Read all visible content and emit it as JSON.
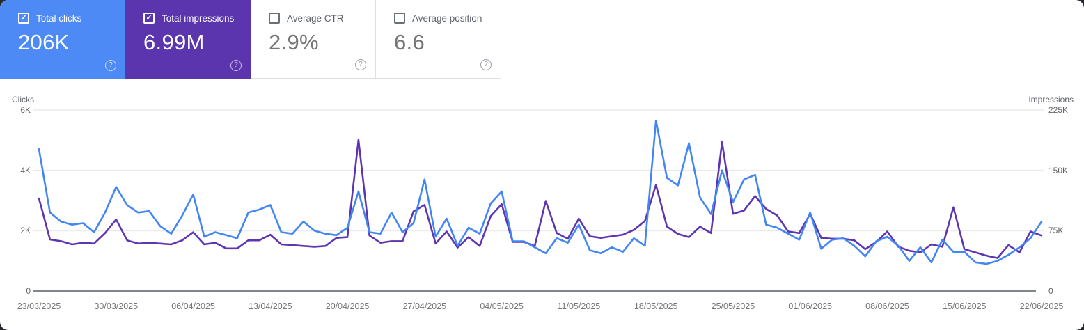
{
  "cards": [
    {
      "id": "total-clicks",
      "label": "Total clicks",
      "value": "206K",
      "checked": true,
      "accent": "#4d8af5"
    },
    {
      "id": "total-impressions",
      "label": "Total impressions",
      "value": "6.99M",
      "checked": true,
      "accent": "#5b35ad"
    },
    {
      "id": "average-ctr",
      "label": "Average CTR",
      "value": "2.9%",
      "checked": false,
      "accent": ""
    },
    {
      "id": "average-position",
      "label": "Average position",
      "value": "6.6",
      "checked": false,
      "accent": ""
    }
  ],
  "colors": {
    "clicks_line": "#4285f4",
    "impressions_line": "#5e35b1",
    "gridline": "#ebebeb",
    "axis_line": "#80868b",
    "tick_text": "#5f6368",
    "date_text": "#757575"
  },
  "chart_data": {
    "type": "line",
    "grid": true,
    "legend_position": "none",
    "num_points": 92,
    "left_axis": {
      "title": "Clicks",
      "range": [
        0,
        6000
      ],
      "tick_labels": [
        "0",
        "2K",
        "4K",
        "6K"
      ]
    },
    "right_axis": {
      "title": "Impressions",
      "range": [
        0,
        225000
      ],
      "tick_labels": [
        "0",
        "75K",
        "150K",
        "225K"
      ]
    },
    "x_tick_labels": [
      "23/03/2025",
      "30/03/2025",
      "06/04/2025",
      "13/04/2025",
      "20/04/2025",
      "27/04/2025",
      "04/05/2025",
      "11/05/2025",
      "18/05/2025",
      "25/05/2025",
      "01/06/2025",
      "08/06/2025",
      "15/06/2025",
      "22/06/2025"
    ],
    "series": [
      {
        "name": "Total clicks",
        "axis": "left",
        "color": "#4285f4",
        "values": [
          4700,
          2600,
          2300,
          2200,
          2250,
          1950,
          2600,
          3450,
          2850,
          2600,
          2650,
          2150,
          1900,
          2500,
          3200,
          1800,
          1950,
          1850,
          1750,
          2600,
          2700,
          2850,
          1950,
          1900,
          2300,
          2000,
          1900,
          1850,
          2100,
          3300,
          1950,
          1900,
          2600,
          1950,
          2250,
          3700,
          1800,
          2400,
          1500,
          2100,
          1900,
          2900,
          3300,
          1650,
          1650,
          1450,
          1250,
          1750,
          1600,
          2200,
          1350,
          1250,
          1450,
          1300,
          1750,
          1500,
          5650,
          3750,
          3500,
          4900,
          3100,
          2550,
          4000,
          2950,
          3700,
          3850,
          2200,
          2100,
          1900,
          1700,
          2600,
          1400,
          1700,
          1750,
          1500,
          1150,
          1650,
          1800,
          1500,
          1000,
          1450,
          950,
          1700,
          1300,
          1300,
          950,
          900,
          1000,
          1200,
          1450,
          1750,
          2300
        ]
      },
      {
        "name": "Total impressions",
        "axis": "right",
        "color": "#5e35b1",
        "values": [
          115000,
          64000,
          62000,
          58000,
          60000,
          59000,
          72000,
          89000,
          63000,
          59000,
          60000,
          59000,
          58000,
          63000,
          73000,
          58000,
          60000,
          53000,
          53000,
          63000,
          63000,
          70000,
          58000,
          57000,
          56000,
          55000,
          56000,
          66000,
          67000,
          188000,
          69000,
          60000,
          62000,
          62000,
          99000,
          107000,
          59000,
          74000,
          54000,
          67000,
          56000,
          93000,
          108000,
          61000,
          61000,
          56000,
          112000,
          72000,
          65000,
          90000,
          68000,
          66000,
          68000,
          70000,
          76000,
          87000,
          132000,
          80000,
          71000,
          67000,
          80000,
          72000,
          185000,
          96000,
          100000,
          118000,
          102000,
          94000,
          74000,
          72000,
          96000,
          66000,
          65000,
          65000,
          63000,
          52000,
          61000,
          74000,
          55000,
          50000,
          48000,
          58000,
          55000,
          104000,
          52000,
          48000,
          44000,
          41000,
          57000,
          48000,
          74000,
          69000
        ]
      }
    ]
  }
}
